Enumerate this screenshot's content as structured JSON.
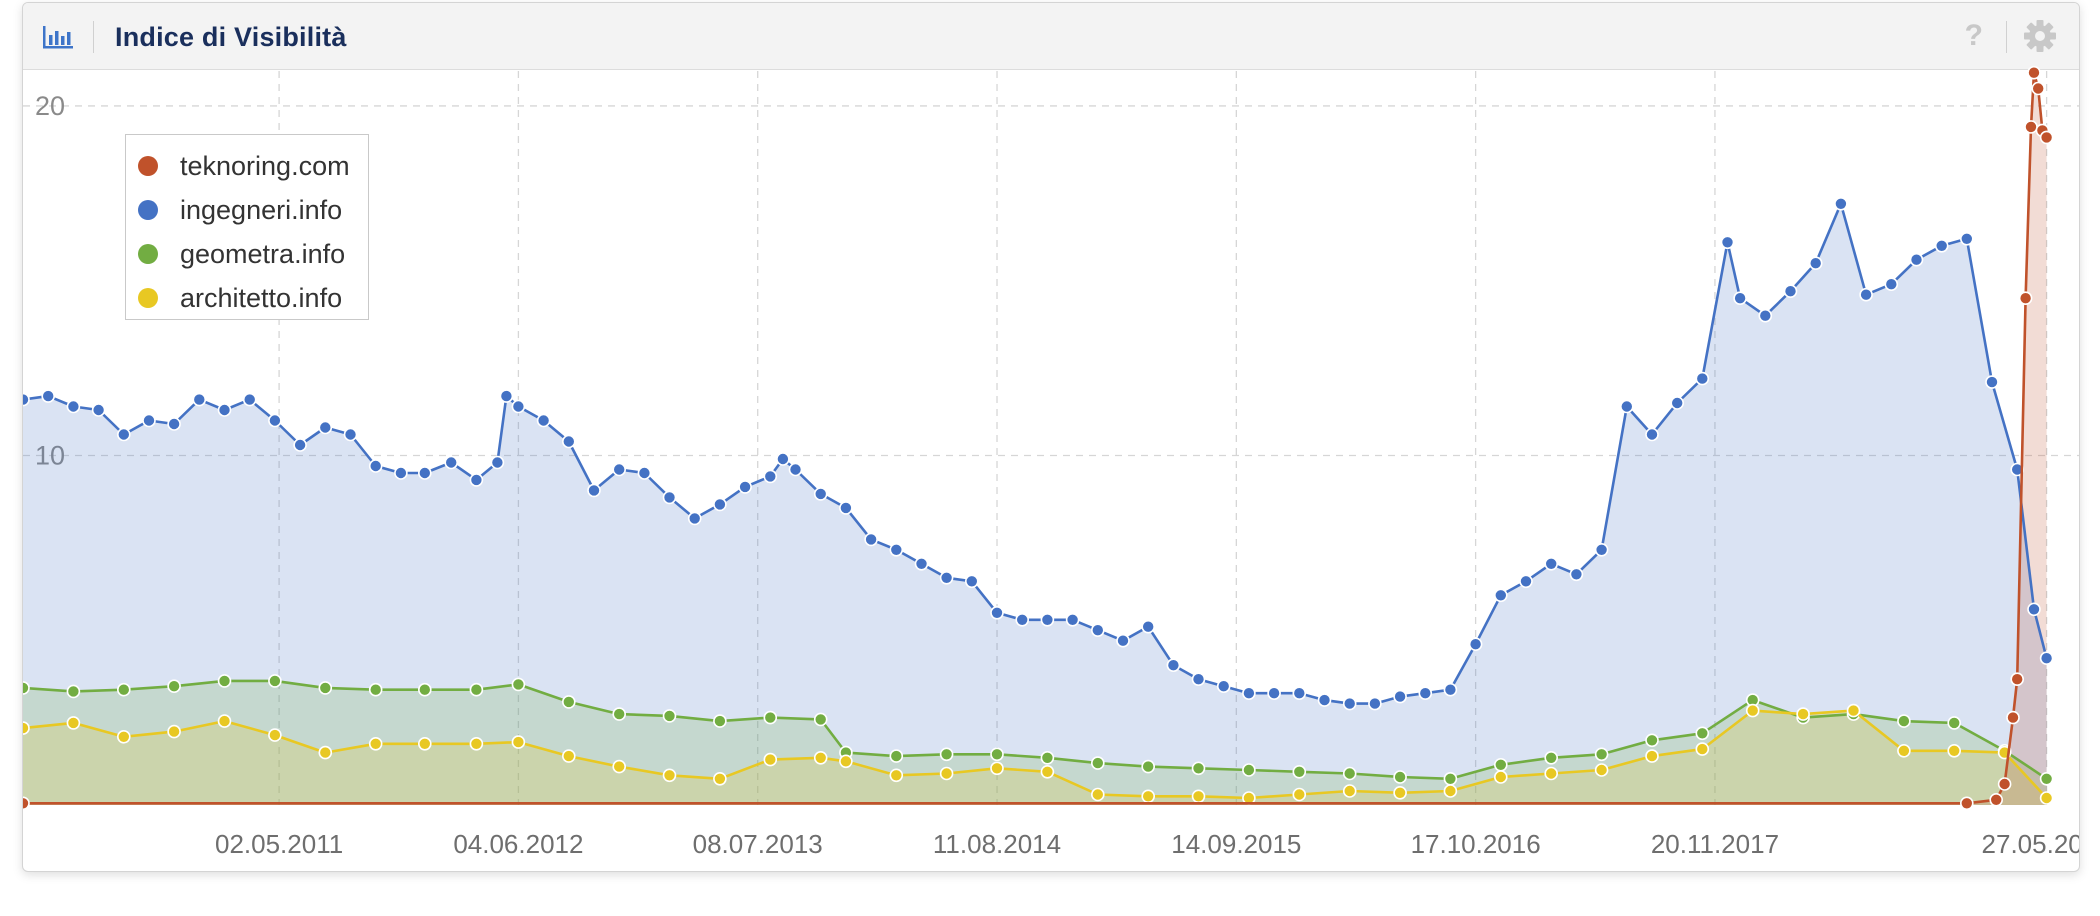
{
  "panel": {
    "title": "Indice di Visibilità",
    "help_symbol": "?",
    "icons": {
      "chart_type": "bar-chart-icon",
      "help": "help-icon",
      "settings": "gear-icon"
    }
  },
  "chart_data": {
    "type": "area",
    "title": "Indice di Visibilità",
    "xlabel": "",
    "ylabel": "",
    "x_range": [
      "2010-03-01",
      "2019-07-20"
    ],
    "ylim": [
      0,
      21
    ],
    "yticks": [
      10,
      20
    ],
    "xticks": [
      "02.05.2011",
      "04.06.2012",
      "08.07.2013",
      "11.08.2014",
      "14.09.2015",
      "17.10.2016",
      "20.11.2017",
      "27.05.2019"
    ],
    "grid": true,
    "legend_position": "top-left",
    "series": [
      {
        "name": "teknoring.com",
        "color": "#c0522b",
        "points": [
          [
            "2010-03-01",
            0.05
          ],
          [
            "2019-01-14",
            0.05
          ],
          [
            "2019-03-04",
            0.15
          ],
          [
            "2019-03-18",
            0.6
          ],
          [
            "2019-04-01",
            2.5
          ],
          [
            "2019-04-08",
            3.6
          ],
          [
            "2019-04-22",
            14.5
          ],
          [
            "2019-05-01",
            19.4
          ],
          [
            "2019-05-06",
            20.95
          ],
          [
            "2019-05-13",
            20.5
          ],
          [
            "2019-05-20",
            19.3
          ],
          [
            "2019-05-27",
            19.1
          ]
        ]
      },
      {
        "name": "ingegneri.info",
        "color": "#4472c4",
        "points": [
          [
            "2010-03-01",
            11.6
          ],
          [
            "2010-04-12",
            11.7
          ],
          [
            "2010-05-24",
            11.4
          ],
          [
            "2010-07-05",
            11.3
          ],
          [
            "2010-08-16",
            10.6
          ],
          [
            "2010-09-27",
            11.0
          ],
          [
            "2010-11-08",
            10.9
          ],
          [
            "2010-12-20",
            11.6
          ],
          [
            "2011-01-31",
            11.3
          ],
          [
            "2011-03-14",
            11.6
          ],
          [
            "2011-04-25",
            11.0
          ],
          [
            "2011-06-06",
            10.3
          ],
          [
            "2011-07-18",
            10.8
          ],
          [
            "2011-08-29",
            10.6
          ],
          [
            "2011-10-10",
            9.7
          ],
          [
            "2011-11-21",
            9.5
          ],
          [
            "2011-12-31",
            9.5
          ],
          [
            "2012-02-13",
            9.8
          ],
          [
            "2012-03-26",
            9.3
          ],
          [
            "2012-04-30",
            9.8
          ],
          [
            "2012-05-15",
            11.7
          ],
          [
            "2012-06-04",
            11.4
          ],
          [
            "2012-07-16",
            11.0
          ],
          [
            "2012-08-27",
            10.4
          ],
          [
            "2012-10-08",
            9.0
          ],
          [
            "2012-11-19",
            9.6
          ],
          [
            "2012-12-31",
            9.5
          ],
          [
            "2013-02-11",
            8.8
          ],
          [
            "2013-03-25",
            8.2
          ],
          [
            "2013-05-06",
            8.6
          ],
          [
            "2013-06-17",
            9.1
          ],
          [
            "2013-07-29",
            9.4
          ],
          [
            "2013-08-19",
            9.9
          ],
          [
            "2013-09-09",
            9.6
          ],
          [
            "2013-10-21",
            8.9
          ],
          [
            "2013-12-02",
            8.5
          ],
          [
            "2014-01-13",
            7.6
          ],
          [
            "2014-02-24",
            7.3
          ],
          [
            "2014-04-07",
            6.9
          ],
          [
            "2014-05-19",
            6.5
          ],
          [
            "2014-06-30",
            6.4
          ],
          [
            "2014-08-11",
            5.5
          ],
          [
            "2014-09-22",
            5.3
          ],
          [
            "2014-11-03",
            5.3
          ],
          [
            "2014-12-15",
            5.3
          ],
          [
            "2015-01-26",
            5.0
          ],
          [
            "2015-03-09",
            4.7
          ],
          [
            "2015-04-20",
            5.1
          ],
          [
            "2015-06-01",
            4.0
          ],
          [
            "2015-07-13",
            3.6
          ],
          [
            "2015-08-24",
            3.4
          ],
          [
            "2015-10-05",
            3.2
          ],
          [
            "2015-11-16",
            3.2
          ],
          [
            "2015-12-28",
            3.2
          ],
          [
            "2016-02-08",
            3.0
          ],
          [
            "2016-03-21",
            2.9
          ],
          [
            "2016-05-02",
            2.9
          ],
          [
            "2016-06-13",
            3.1
          ],
          [
            "2016-07-25",
            3.2
          ],
          [
            "2016-09-05",
            3.3
          ],
          [
            "2016-10-17",
            4.6
          ],
          [
            "2016-11-28",
            6.0
          ],
          [
            "2017-01-09",
            6.4
          ],
          [
            "2017-02-20",
            6.9
          ],
          [
            "2017-04-03",
            6.6
          ],
          [
            "2017-05-15",
            7.3
          ],
          [
            "2017-06-26",
            11.4
          ],
          [
            "2017-08-07",
            10.6
          ],
          [
            "2017-09-18",
            11.5
          ],
          [
            "2017-10-30",
            12.2
          ],
          [
            "2017-12-11",
            16.1
          ],
          [
            "2018-01-01",
            14.5
          ],
          [
            "2018-02-12",
            14.0
          ],
          [
            "2018-03-26",
            14.7
          ],
          [
            "2018-05-07",
            15.5
          ],
          [
            "2018-06-18",
            17.2
          ],
          [
            "2018-07-30",
            14.6
          ],
          [
            "2018-09-10",
            14.9
          ],
          [
            "2018-10-22",
            15.6
          ],
          [
            "2018-12-03",
            16.0
          ],
          [
            "2019-01-14",
            16.2
          ],
          [
            "2019-02-25",
            12.1
          ],
          [
            "2019-04-08",
            9.6
          ],
          [
            "2019-05-06",
            5.6
          ],
          [
            "2019-05-27",
            4.2
          ]
        ]
      },
      {
        "name": "geometra.info",
        "color": "#72ad42",
        "points": [
          [
            "2010-03-01",
            3.35
          ],
          [
            "2010-05-24",
            3.25
          ],
          [
            "2010-08-16",
            3.3
          ],
          [
            "2010-11-08",
            3.4
          ],
          [
            "2011-01-31",
            3.55
          ],
          [
            "2011-04-25",
            3.55
          ],
          [
            "2011-07-18",
            3.35
          ],
          [
            "2011-10-10",
            3.3
          ],
          [
            "2011-12-31",
            3.3
          ],
          [
            "2012-03-26",
            3.3
          ],
          [
            "2012-06-04",
            3.45
          ],
          [
            "2012-08-27",
            2.95
          ],
          [
            "2012-11-19",
            2.6
          ],
          [
            "2013-02-11",
            2.55
          ],
          [
            "2013-05-06",
            2.4
          ],
          [
            "2013-07-29",
            2.5
          ],
          [
            "2013-10-21",
            2.45
          ],
          [
            "2013-12-02",
            1.5
          ],
          [
            "2014-02-24",
            1.4
          ],
          [
            "2014-05-19",
            1.45
          ],
          [
            "2014-08-11",
            1.45
          ],
          [
            "2014-11-03",
            1.35
          ],
          [
            "2015-01-26",
            1.2
          ],
          [
            "2015-04-20",
            1.1
          ],
          [
            "2015-07-13",
            1.05
          ],
          [
            "2015-10-05",
            1.0
          ],
          [
            "2015-12-28",
            0.95
          ],
          [
            "2016-03-21",
            0.9
          ],
          [
            "2016-06-13",
            0.8
          ],
          [
            "2016-09-05",
            0.75
          ],
          [
            "2016-11-28",
            1.15
          ],
          [
            "2017-02-20",
            1.35
          ],
          [
            "2017-05-15",
            1.45
          ],
          [
            "2017-08-07",
            1.85
          ],
          [
            "2017-10-30",
            2.05
          ],
          [
            "2018-01-22",
            3.0
          ],
          [
            "2018-04-16",
            2.5
          ],
          [
            "2018-07-09",
            2.6
          ],
          [
            "2018-10-01",
            2.4
          ],
          [
            "2018-12-24",
            2.35
          ],
          [
            "2019-03-18",
            1.55
          ],
          [
            "2019-05-27",
            0.75
          ]
        ]
      },
      {
        "name": "architetto.info",
        "color": "#e8c823",
        "points": [
          [
            "2010-03-01",
            2.2
          ],
          [
            "2010-05-24",
            2.35
          ],
          [
            "2010-08-16",
            1.95
          ],
          [
            "2010-11-08",
            2.1
          ],
          [
            "2011-01-31",
            2.4
          ],
          [
            "2011-04-25",
            2.0
          ],
          [
            "2011-07-18",
            1.5
          ],
          [
            "2011-10-10",
            1.75
          ],
          [
            "2011-12-31",
            1.75
          ],
          [
            "2012-03-26",
            1.75
          ],
          [
            "2012-06-04",
            1.8
          ],
          [
            "2012-08-27",
            1.4
          ],
          [
            "2012-11-19",
            1.1
          ],
          [
            "2013-02-11",
            0.85
          ],
          [
            "2013-05-06",
            0.75
          ],
          [
            "2013-07-29",
            1.3
          ],
          [
            "2013-10-21",
            1.35
          ],
          [
            "2013-12-02",
            1.25
          ],
          [
            "2014-02-24",
            0.85
          ],
          [
            "2014-05-19",
            0.9
          ],
          [
            "2014-08-11",
            1.05
          ],
          [
            "2014-11-03",
            0.95
          ],
          [
            "2015-01-26",
            0.3
          ],
          [
            "2015-04-20",
            0.25
          ],
          [
            "2015-07-13",
            0.25
          ],
          [
            "2015-10-05",
            0.2
          ],
          [
            "2015-12-28",
            0.3
          ],
          [
            "2016-03-21",
            0.4
          ],
          [
            "2016-06-13",
            0.35
          ],
          [
            "2016-09-05",
            0.4
          ],
          [
            "2016-11-28",
            0.8
          ],
          [
            "2017-02-20",
            0.9
          ],
          [
            "2017-05-15",
            1.0
          ],
          [
            "2017-08-07",
            1.4
          ],
          [
            "2017-10-30",
            1.6
          ],
          [
            "2018-01-22",
            2.7
          ],
          [
            "2018-04-16",
            2.6
          ],
          [
            "2018-07-09",
            2.7
          ],
          [
            "2018-10-01",
            1.55
          ],
          [
            "2018-12-24",
            1.55
          ],
          [
            "2019-03-18",
            1.5
          ],
          [
            "2019-05-27",
            0.2
          ]
        ]
      }
    ]
  }
}
